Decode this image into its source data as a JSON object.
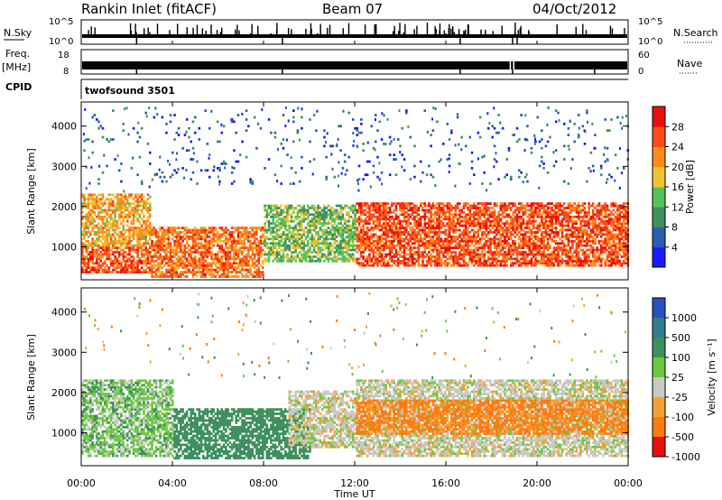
{
  "header": {
    "site": "Rankin Inlet (fitACF)",
    "beam": "Beam 07",
    "date": "04/Oct/2012"
  },
  "noise_panel": {
    "left_label": "N.Sky",
    "left_ticks": [
      "10^5",
      "10^0"
    ],
    "right_label": "N.Search",
    "right_ticks": [
      "10^5",
      "10^0"
    ]
  },
  "freq_panel": {
    "left_label_line1": "Freq.",
    "left_label_line2": "[MHz]",
    "left_ticks": [
      "18",
      "8"
    ],
    "right_label": "Nave",
    "right_ticks": [
      "60",
      "0"
    ]
  },
  "cpid_panel": {
    "label": "CPID",
    "program": "twofsound 3501"
  },
  "time_axis": {
    "label": "Time UT",
    "ticks": [
      "00:00",
      "04:00",
      "08:00",
      "12:00",
      "16:00",
      "20:00",
      "00:00"
    ]
  },
  "range_axis": {
    "label": "Slant Range [km]",
    "ticks": [
      "1000",
      "2000",
      "3000",
      "4000"
    ]
  },
  "power_scale": {
    "label": "Power [dB]",
    "ticks": [
      "4",
      "8",
      "12",
      "16",
      "20",
      "24",
      "28"
    ],
    "colors": [
      "#1a1aff",
      "#2a5fb0",
      "#3f8f5f",
      "#57c25a",
      "#f2c230",
      "#ff8c1a",
      "#ff4a1a",
      "#e8100d"
    ]
  },
  "velocity_scale": {
    "label": "Velocity [m s⁻¹]",
    "ticks": [
      "1000",
      "500",
      "100",
      "25",
      "-25",
      "-100",
      "-500",
      "-1000"
    ],
    "colors": [
      "#2a4fc0",
      "#2e7d8c",
      "#3f8f5f",
      "#6cc83e",
      "#c8c8c4",
      "#f5a030",
      "#ff7a10",
      "#e8100d"
    ]
  },
  "chart_data": [
    {
      "type": "heatmap",
      "title": "Power",
      "xlabel": "Time UT",
      "ylabel": "Slant Range [km]",
      "xlim": [
        "00:00",
        "24:00"
      ],
      "ylim": [
        180,
        4600
      ],
      "colorbar_label": "Power [dB]",
      "colorbar_range": [
        0,
        30
      ],
      "description_bands": [
        {
          "t_start": 0,
          "t_end": 3,
          "range_lo": 300,
          "range_hi": 1000,
          "value_db": 26
        },
        {
          "t_start": 0,
          "t_end": 3,
          "range_lo": 1000,
          "range_hi": 2300,
          "value_db": 20
        },
        {
          "t_start": 3,
          "t_end": 8,
          "range_lo": 200,
          "range_hi": 1500,
          "value_db": 24
        },
        {
          "t_start": 8,
          "t_end": 12,
          "range_lo": 600,
          "range_hi": 2000,
          "value_db": 14
        },
        {
          "t_start": 12,
          "t_end": 24,
          "range_lo": 500,
          "range_hi": 2100,
          "value_db": 26
        },
        {
          "t_start": 0,
          "t_end": 24,
          "range_lo": 2500,
          "range_hi": 4400,
          "value_db": 6
        }
      ]
    },
    {
      "type": "heatmap",
      "title": "Velocity",
      "xlabel": "Time UT",
      "ylabel": "Slant Range [km]",
      "xlim": [
        "00:00",
        "24:00"
      ],
      "ylim": [
        180,
        4600
      ],
      "colorbar_label": "Velocity [m s⁻¹]",
      "colorbar_range": [
        -1000,
        1000
      ],
      "description_bands": [
        {
          "t_start": 0,
          "t_end": 4,
          "range_lo": 400,
          "range_hi": 2300,
          "value_ms": 60
        },
        {
          "t_start": 4,
          "t_end": 10,
          "range_lo": 300,
          "range_hi": 1600,
          "value_ms": 300
        },
        {
          "t_start": 9,
          "t_end": 12,
          "range_lo": 600,
          "range_hi": 2000,
          "value_ms": 0
        },
        {
          "t_start": 12,
          "t_end": 24,
          "range_lo": 400,
          "range_hi": 2300,
          "value_ms": 0
        },
        {
          "t_start": 12,
          "t_end": 24,
          "range_lo": 900,
          "range_hi": 1800,
          "value_ms": -150
        }
      ]
    }
  ]
}
